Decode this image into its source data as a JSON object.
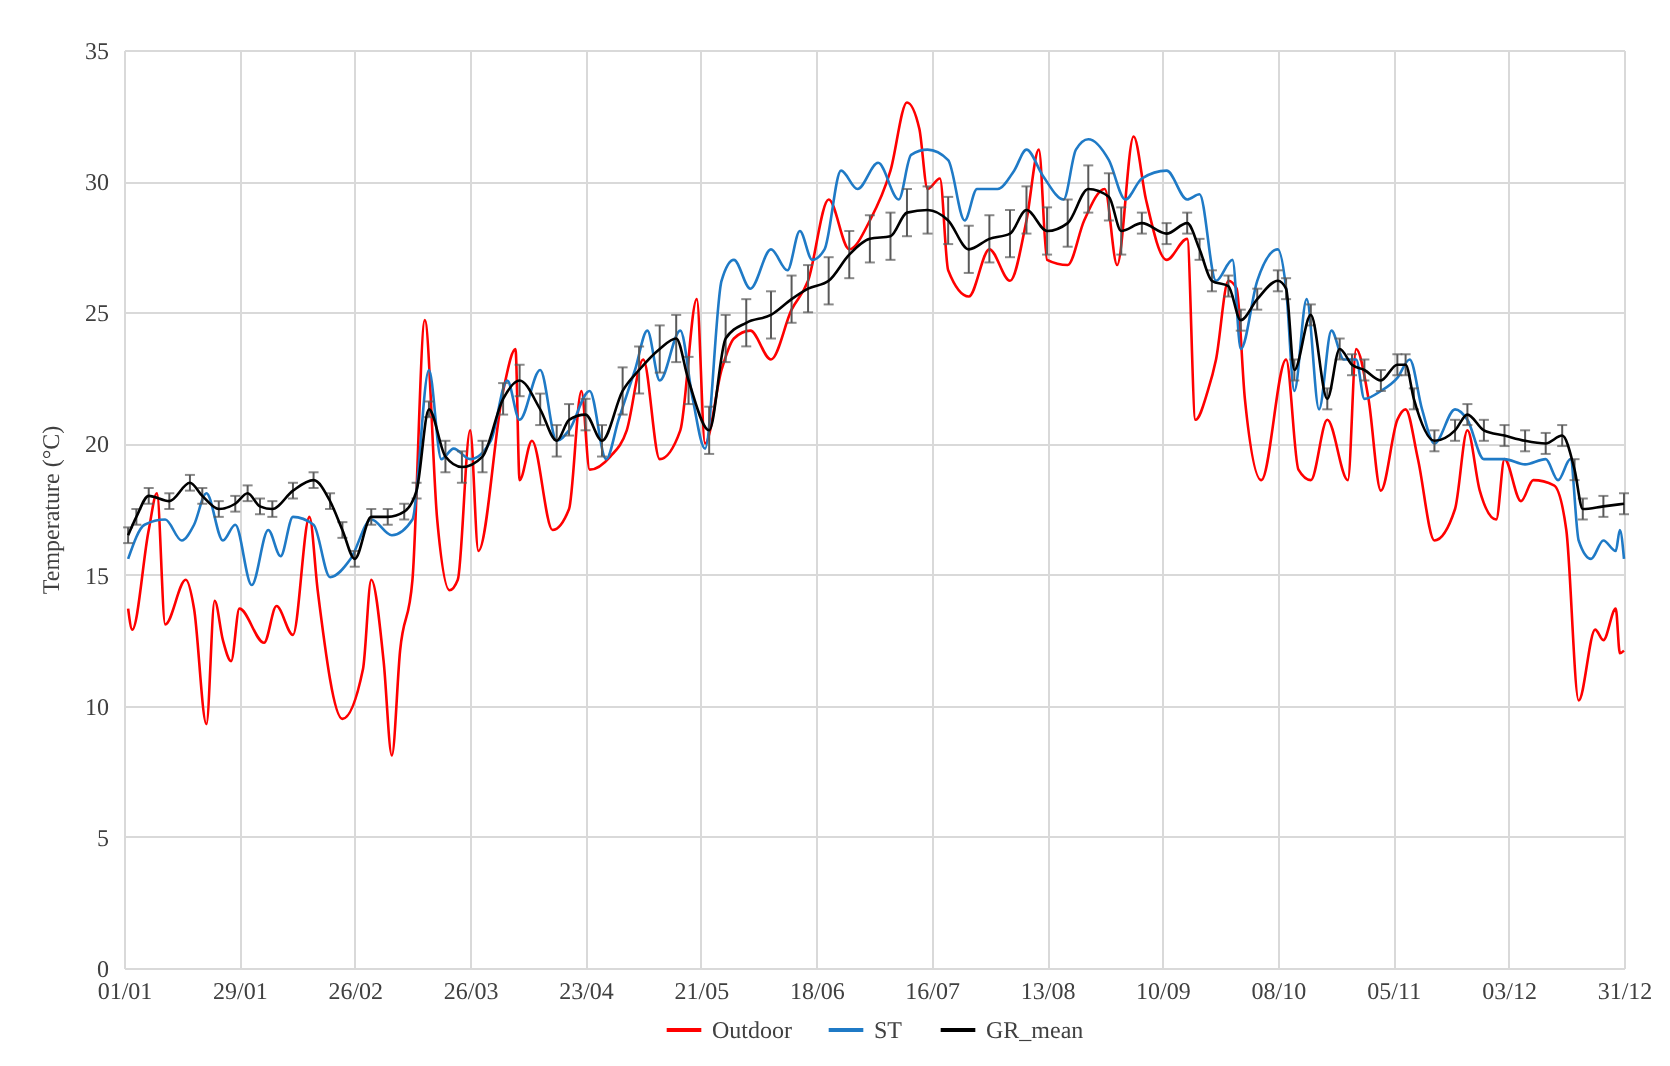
{
  "chart_data": {
    "type": "line",
    "ylabel": "Temperature (°C)",
    "ylim": [
      0,
      35
    ],
    "yticks": [
      0,
      5,
      10,
      15,
      20,
      25,
      30,
      35
    ],
    "xlim": [
      "--01-01",
      "--12-31"
    ],
    "xticks": [
      {
        "value": "--01-01",
        "label": "01/01"
      },
      {
        "value": "--01-29",
        "label": "29/01"
      },
      {
        "value": "--02-26",
        "label": "26/02"
      },
      {
        "value": "--03-26",
        "label": "26/03"
      },
      {
        "value": "--04-23",
        "label": "23/04"
      },
      {
        "value": "--05-21",
        "label": "21/05"
      },
      {
        "value": "--06-18",
        "label": "18/06"
      },
      {
        "value": "--07-16",
        "label": "16/07"
      },
      {
        "value": "--08-13",
        "label": "13/08"
      },
      {
        "value": "--09-10",
        "label": "10/09"
      },
      {
        "value": "--10-08",
        "label": "08/10"
      },
      {
        "value": "--11-05",
        "label": "05/11"
      },
      {
        "value": "--12-03",
        "label": "03/12"
      },
      {
        "value": "--12-31",
        "label": "31/12"
      }
    ],
    "grid": true,
    "legend": "bottom",
    "series": [
      {
        "name": "Outdoor",
        "color": "#ff0000",
        "x": [
          "--01-02",
          "--01-03",
          "--01-07",
          "--01-09",
          "--01-11",
          "--01-16",
          "--01-18",
          "--01-21",
          "--01-23",
          "--01-25",
          "--01-27",
          "--01-29",
          "--02-04",
          "--02-07",
          "--02-11",
          "--02-15",
          "--02-17",
          "--02-23",
          "--02-28",
          "--03-02",
          "--03-05",
          "--03-07",
          "--03-09",
          "--03-12",
          "--03-15",
          "--03-18",
          "--03-21",
          "--03-23",
          "--03-26",
          "--03-28",
          "--04-03",
          "--04-06",
          "--04-07",
          "--04-10",
          "--04-15",
          "--04-19",
          "--04-22",
          "--04-24",
          "--04-29",
          "--05-03",
          "--05-07",
          "--05-11",
          "--05-16",
          "--05-20",
          "--05-22",
          "--05-26",
          "--05-29",
          "--06-02",
          "--06-07",
          "--06-12",
          "--06-16",
          "--06-21",
          "--06-26",
          "--07-01",
          "--07-06",
          "--07-10",
          "--07-13",
          "--07-15",
          "--07-18",
          "--07-20",
          "--07-25",
          "--07-30",
          "--08-04",
          "--08-08",
          "--08-11",
          "--08-13",
          "--08-18",
          "--08-22",
          "--08-27",
          "--08-30",
          "--09-03",
          "--09-06",
          "--09-11",
          "--09-16",
          "--09-18",
          "--09-21",
          "--09-23",
          "--09-26",
          "--09-28",
          "--09-30",
          "--10-04",
          "--10-10",
          "--10-13",
          "--10-16",
          "--10-20",
          "--10-25",
          "--10-27",
          "--10-30",
          "--11-02",
          "--11-06",
          "--11-08",
          "--11-11",
          "--11-15",
          "--11-20",
          "--11-23",
          "--11-26",
          "--11-30",
          "--12-02",
          "--12-06",
          "--12-09",
          "--12-14",
          "--12-17",
          "--12-20",
          "--12-24",
          "--12-26",
          "--12-29",
          "--12-30",
          "--12-31"
        ],
        "values": [
          13.7,
          12.9,
          16.7,
          18.1,
          13.1,
          14.8,
          13.7,
          9.3,
          14.0,
          12.5,
          11.7,
          13.7,
          12.4,
          13.8,
          12.7,
          17.2,
          14.4,
          9.5,
          11.4,
          14.8,
          11.7,
          8.1,
          12.1,
          14.8,
          24.7,
          17.1,
          14.4,
          14.8,
          20.5,
          15.9,
          22.0,
          23.6,
          18.6,
          20.1,
          16.7,
          17.5,
          22.0,
          19.0,
          19.5,
          20.5,
          23.2,
          19.4,
          20.5,
          25.5,
          20.0,
          22.8,
          24.0,
          24.3,
          23.2,
          25.1,
          26.2,
          29.3,
          27.4,
          28.5,
          30.4,
          33.0,
          32.0,
          29.7,
          30.1,
          26.6,
          25.6,
          27.4,
          26.2,
          28.5,
          31.2,
          27.0,
          26.8,
          28.5,
          29.7,
          26.8,
          31.7,
          29.3,
          27.0,
          27.8,
          20.9,
          22.0,
          23.2,
          26.2,
          25.9,
          21.7,
          18.6,
          23.2,
          19.0,
          18.6,
          20.9,
          18.6,
          23.6,
          21.7,
          18.2,
          20.9,
          21.3,
          19.4,
          16.3,
          17.5,
          20.5,
          18.2,
          17.1,
          19.4,
          17.8,
          18.6,
          18.4,
          16.7,
          10.2,
          12.9,
          12.5,
          13.7,
          12.0,
          12.1
        ]
      },
      {
        "name": "ST",
        "color": "#1f7ac6",
        "x": [
          "--01-02",
          "--01-06",
          "--01-11",
          "--01-15",
          "--01-18",
          "--01-21",
          "--01-25",
          "--01-28",
          "--02-01",
          "--02-05",
          "--02-08",
          "--02-11",
          "--02-16",
          "--02-20",
          "--02-25",
          "--03-02",
          "--03-07",
          "--03-12",
          "--03-16",
          "--03-19",
          "--03-22",
          "--03-26",
          "--03-31",
          "--04-04",
          "--04-07",
          "--04-12",
          "--04-16",
          "--04-19",
          "--04-24",
          "--04-28",
          "--05-01",
          "--05-05",
          "--05-08",
          "--05-11",
          "--05-16",
          "--05-19",
          "--05-22",
          "--05-26",
          "--05-29",
          "--06-02",
          "--06-07",
          "--06-11",
          "--06-14",
          "--06-17",
          "--06-20",
          "--06-24",
          "--06-28",
          "--07-03",
          "--07-08",
          "--07-11",
          "--07-15",
          "--07-20",
          "--07-24",
          "--07-27",
          "--08-01",
          "--08-05",
          "--08-08",
          "--08-12",
          "--08-17",
          "--08-20",
          "--08-23",
          "--08-28",
          "--09-01",
          "--09-05",
          "--09-11",
          "--09-16",
          "--09-19",
          "--09-23",
          "--09-27",
          "--09-29",
          "--10-03",
          "--10-08",
          "--10-10",
          "--10-12",
          "--10-15",
          "--10-18",
          "--10-21",
          "--10-24",
          "--10-27",
          "--10-29",
          "--11-02",
          "--11-06",
          "--11-09",
          "--11-12",
          "--11-15",
          "--11-20",
          "--11-23",
          "--11-27",
          "--12-02",
          "--12-07",
          "--12-12",
          "--12-15",
          "--12-18",
          "--12-20",
          "--12-23",
          "--12-26",
          "--12-29",
          "--12-30",
          "--12-31"
        ],
        "values": [
          15.6,
          16.9,
          17.1,
          16.3,
          16.9,
          18.1,
          16.3,
          16.9,
          14.6,
          16.7,
          15.7,
          17.2,
          16.9,
          14.9,
          15.6,
          17.1,
          16.5,
          17.1,
          22.8,
          19.4,
          19.8,
          19.4,
          20.1,
          22.4,
          20.9,
          22.8,
          20.1,
          20.5,
          22.0,
          19.4,
          20.9,
          22.8,
          24.3,
          22.4,
          24.3,
          21.7,
          19.8,
          26.2,
          27.0,
          25.9,
          27.4,
          26.6,
          28.1,
          27.0,
          27.4,
          30.4,
          29.7,
          30.7,
          29.3,
          31.0,
          31.2,
          30.8,
          28.5,
          29.7,
          29.7,
          30.4,
          31.2,
          30.2,
          29.3,
          31.2,
          31.6,
          30.8,
          29.3,
          30.1,
          30.4,
          29.3,
          29.5,
          26.2,
          27.0,
          23.6,
          26.2,
          27.4,
          25.9,
          22.0,
          25.5,
          21.3,
          24.3,
          23.2,
          23.2,
          21.7,
          22.0,
          22.5,
          23.2,
          21.3,
          20.0,
          21.3,
          20.9,
          19.4,
          19.4,
          19.2,
          19.4,
          18.6,
          19.4,
          16.3,
          15.6,
          16.3,
          15.9,
          16.7,
          15.6
        ]
      },
      {
        "name": "GR_mean",
        "color": "#000000",
        "x": [
          "--01-02",
          "--01-04",
          "--01-07",
          "--01-12",
          "--01-17",
          "--01-20",
          "--01-24",
          "--01-28",
          "--01-31",
          "--02-03",
          "--02-06",
          "--02-11",
          "--02-16",
          "--02-20",
          "--02-23",
          "--02-26",
          "--03-02",
          "--03-06",
          "--03-10",
          "--03-13",
          "--03-16",
          "--03-20",
          "--03-24",
          "--03-29",
          "--04-03",
          "--04-07",
          "--04-12",
          "--04-16",
          "--04-19",
          "--04-23",
          "--04-27",
          "--05-02",
          "--05-06",
          "--05-11",
          "--05-15",
          "--05-18",
          "--05-23",
          "--05-27",
          "--06-01",
          "--06-07",
          "--06-12",
          "--06-16",
          "--06-21",
          "--06-26",
          "--07-01",
          "--07-06",
          "--07-10",
          "--07-15",
          "--07-20",
          "--07-25",
          "--07-30",
          "--08-04",
          "--08-08",
          "--08-13",
          "--08-18",
          "--08-23",
          "--08-28",
          "--08-31",
          "--09-05",
          "--09-11",
          "--09-16",
          "--09-19",
          "--09-22",
          "--09-26",
          "--09-29",
          "--10-03",
          "--10-08",
          "--10-10",
          "--10-12",
          "--10-16",
          "--10-20",
          "--10-23",
          "--10-26",
          "--10-29",
          "--11-02",
          "--11-06",
          "--11-08",
          "--11-10",
          "--11-15",
          "--11-20",
          "--11-23",
          "--11-27",
          "--12-02",
          "--12-07",
          "--12-12",
          "--12-16",
          "--12-19",
          "--12-21",
          "--12-26",
          "--12-31"
        ],
        "values": [
          16.5,
          17.2,
          18.0,
          17.8,
          18.5,
          18.0,
          17.5,
          17.7,
          18.1,
          17.6,
          17.5,
          18.2,
          18.6,
          17.8,
          16.7,
          15.6,
          17.2,
          17.2,
          17.4,
          18.2,
          21.3,
          19.5,
          19.1,
          19.5,
          21.7,
          22.4,
          21.3,
          20.1,
          20.9,
          21.1,
          20.1,
          22.0,
          22.8,
          23.6,
          24.0,
          22.4,
          20.5,
          24.0,
          24.6,
          24.9,
          25.5,
          25.9,
          26.2,
          27.2,
          27.8,
          27.9,
          28.8,
          28.9,
          28.5,
          27.4,
          27.8,
          28.0,
          28.9,
          28.1,
          28.4,
          29.7,
          29.4,
          28.1,
          28.4,
          28.0,
          28.4,
          27.4,
          26.2,
          26.0,
          24.7,
          25.5,
          26.2,
          25.9,
          22.8,
          24.9,
          21.7,
          23.6,
          23.0,
          22.8,
          22.4,
          23.0,
          23.0,
          21.7,
          20.1,
          20.5,
          21.1,
          20.5,
          20.3,
          20.1,
          20.0,
          20.3,
          19.0,
          17.5,
          17.6,
          17.7
        ],
        "errors": [
          0.3,
          0.3,
          0.3,
          0.3,
          0.3,
          0.3,
          0.3,
          0.3,
          0.3,
          0.3,
          0.3,
          0.3,
          0.3,
          0.3,
          0.3,
          0.3,
          0.3,
          0.3,
          0.3,
          0.3,
          0.3,
          0.6,
          0.6,
          0.6,
          0.6,
          0.6,
          0.6,
          0.6,
          0.6,
          0.6,
          0.6,
          0.9,
          0.9,
          0.9,
          0.9,
          0.9,
          0.9,
          0.9,
          0.9,
          0.9,
          0.9,
          0.9,
          0.9,
          0.9,
          0.9,
          0.9,
          0.9,
          0.9,
          0.9,
          0.9,
          0.9,
          0.9,
          0.9,
          0.9,
          0.9,
          0.9,
          0.9,
          0.9,
          0.4,
          0.4,
          0.4,
          0.4,
          0.4,
          0.4,
          0.4,
          0.4,
          0.4,
          0.4,
          0.4,
          0.4,
          0.4,
          0.4,
          0.4,
          0.4,
          0.4,
          0.4,
          0.4,
          0.4,
          0.4,
          0.4,
          0.4,
          0.4,
          0.4,
          0.4,
          0.4,
          0.4,
          0.4,
          0.4,
          0.4,
          0.4
        ]
      }
    ]
  }
}
